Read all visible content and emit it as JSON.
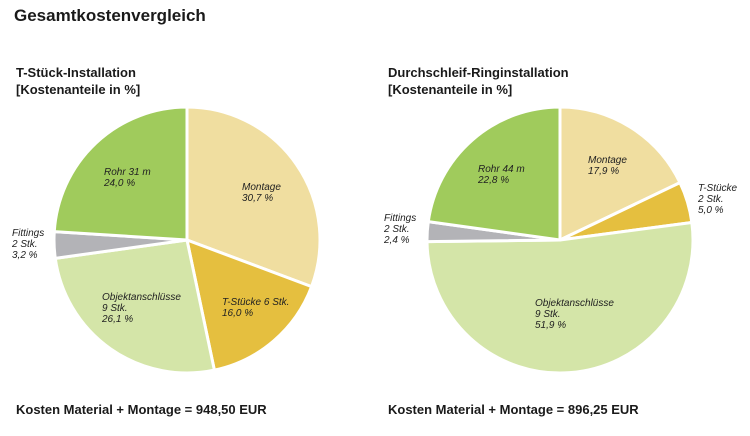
{
  "page_title": "Gesamtkostenvergleich",
  "left": {
    "subtitle_line1": "T-Stück-Installation",
    "subtitle_line2": "[Kostenanteile in %]",
    "cost_summary": "Kosten Material + Montage = 948,50 EUR"
  },
  "right": {
    "subtitle_line1": "Durchschleif-Ringinstallation",
    "subtitle_line2": "[Kostenanteile in %]",
    "cost_summary": "Kosten Material + Montage = 896,25 EUR"
  },
  "chart_data": [
    {
      "type": "pie",
      "title": "T-Stück-Installation",
      "subtitle": "[Kostenanteile in %]",
      "slices": [
        {
          "label": "Montage",
          "value": 30.7,
          "value_text": "30,7 %",
          "color": "#f0dea0"
        },
        {
          "label": "T-Stücke 6 Stk.",
          "value": 16.0,
          "value_text": "16,0 %",
          "color": "#e5bf3f"
        },
        {
          "label": "Objektanschlüsse 9 Stk.",
          "value": 26.1,
          "value_text": "26,1 %",
          "color": "#d4e5a8"
        },
        {
          "label": "Fittings 2 Stk.",
          "value": 3.2,
          "value_text": "3,2 %",
          "color": "#b3b3b7"
        },
        {
          "label": "Rohr 31 m",
          "value": 24.0,
          "value_text": "24,0 %",
          "color": "#a0cb5c"
        }
      ],
      "labels": [
        {
          "lines": [
            "Montage",
            "30,7 %"
          ]
        },
        {
          "lines": [
            "T-Stücke 6 Stk.",
            "16,0 %"
          ]
        },
        {
          "lines": [
            "Objektanschlüsse",
            "9 Stk.",
            "26,1 %"
          ]
        },
        {
          "lines": [
            "Fittings",
            "2 Stk.",
            "3,2 %"
          ]
        },
        {
          "lines": [
            "Rohr 31 m",
            "24,0 %"
          ]
        }
      ]
    },
    {
      "type": "pie",
      "title": "Durchschleif-Ringinstallation",
      "subtitle": "[Kostenanteile in %]",
      "slices": [
        {
          "label": "Montage",
          "value": 17.9,
          "value_text": "17,9 %",
          "color": "#f0dea0"
        },
        {
          "label": "T-Stücke 2 Stk.",
          "value": 5.0,
          "value_text": "5,0 %",
          "color": "#e5bf3f"
        },
        {
          "label": "Objektanschlüsse 9 Stk.",
          "value": 51.9,
          "value_text": "51,9 %",
          "color": "#d4e5a8"
        },
        {
          "label": "Fittings 2 Stk.",
          "value": 2.4,
          "value_text": "2,4 %",
          "color": "#b3b3b7"
        },
        {
          "label": "Rohr 44 m",
          "value": 22.8,
          "value_text": "22,8 %",
          "color": "#a0cb5c"
        }
      ],
      "labels": [
        {
          "lines": [
            "Montage",
            "17,9 %"
          ]
        },
        {
          "lines": [
            "T-Stücke",
            "2 Stk.",
            "5,0 %"
          ]
        },
        {
          "lines": [
            "Objektanschlüsse",
            "9 Stk.",
            "51,9 %"
          ]
        },
        {
          "lines": [
            "Fittings",
            "2 Stk.",
            "2,4 %"
          ]
        },
        {
          "lines": [
            "Rohr 44 m",
            "22,8 %"
          ]
        }
      ]
    }
  ]
}
